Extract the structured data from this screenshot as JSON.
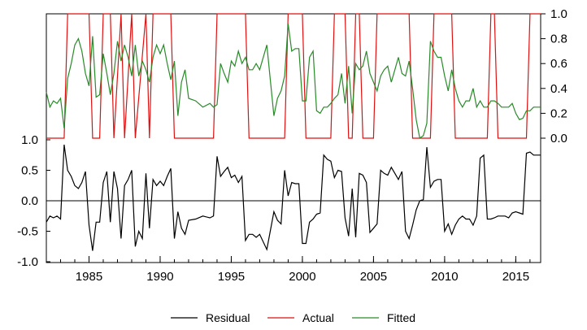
{
  "chart_data": {
    "type": "line",
    "title": "",
    "xlabel": "",
    "xlim": [
      1982.0,
      2016.75
    ],
    "x_ticks": [
      1985,
      1990,
      1995,
      2000,
      2005,
      2010,
      2015
    ],
    "x_tick_labels": [
      "1985",
      "1990",
      "1995",
      "2000",
      "2005",
      "2010",
      "2015"
    ],
    "left_axis": {
      "ylim": [
        -1.0,
        1.0
      ],
      "ticks": [
        1.0,
        0.5,
        0.0,
        -0.5,
        -1.0
      ],
      "tick_labels": [
        "1.0",
        "0.5",
        "0.0",
        "-0.5",
        "-1.0"
      ],
      "zero_line": true
    },
    "right_axis": {
      "ylim": [
        0.0,
        1.0
      ],
      "ticks": [
        1.0,
        0.8,
        0.6,
        0.4,
        0.2,
        0.0
      ],
      "tick_labels": [
        "1.0",
        "0.8",
        "0.6",
        "0.4",
        "0.2",
        "0.0"
      ]
    },
    "legend": {
      "placement": "bottom-center"
    },
    "series": [
      {
        "name": "Residual",
        "axis": "left",
        "color": "#000000",
        "x": [
          1982.0,
          1982.25,
          1982.5,
          1982.75,
          1983.0,
          1983.25,
          1983.5,
          1983.75,
          1984.0,
          1984.25,
          1984.5,
          1984.75,
          1985.0,
          1985.25,
          1985.5,
          1985.75,
          1986.0,
          1986.25,
          1986.5,
          1986.75,
          1987.0,
          1987.25,
          1987.5,
          1987.75,
          1988.0,
          1988.25,
          1988.5,
          1988.75,
          1989.0,
          1989.25,
          1989.5,
          1989.75,
          1990.0,
          1990.25,
          1990.5,
          1990.75,
          1991.0,
          1991.25,
          1991.5,
          1991.75,
          1992.0,
          1992.5,
          1993.0,
          1993.5,
          1993.75,
          1994.0,
          1994.25,
          1994.5,
          1994.75,
          1995.0,
          1995.25,
          1995.5,
          1995.75,
          1996.0,
          1996.25,
          1996.5,
          1996.75,
          1997.0,
          1997.5,
          1998.0,
          1998.25,
          1998.5,
          1998.75,
          1999.0,
          1999.25,
          1999.5,
          1999.75,
          2000.0,
          2000.25,
          2000.5,
          2000.75,
          2001.0,
          2001.25,
          2001.5,
          2001.75,
          2002.0,
          2002.25,
          2002.5,
          2002.75,
          2003.0,
          2003.25,
          2003.5,
          2003.75,
          2004.0,
          2004.25,
          2004.5,
          2004.75,
          2005.0,
          2005.25,
          2005.5,
          2005.75,
          2006.0,
          2006.25,
          2006.5,
          2006.75,
          2007.0,
          2007.25,
          2007.5,
          2007.75,
          2008.0,
          2008.25,
          2008.5,
          2008.75,
          2009.0,
          2009.25,
          2009.5,
          2009.75,
          2010.0,
          2010.25,
          2010.5,
          2010.75,
          2011.0,
          2011.25,
          2011.5,
          2011.75,
          2012.0,
          2012.25,
          2012.5,
          2012.75,
          2013.0,
          2013.25,
          2013.5,
          2013.75,
          2014.0,
          2014.25,
          2014.5,
          2014.75,
          2015.0,
          2015.25,
          2015.5,
          2015.75,
          2016.0,
          2016.25,
          2016.5,
          2016.75
        ],
        "values": [
          -0.35,
          -0.25,
          -0.28,
          -0.25,
          -0.3,
          0.92,
          0.5,
          0.4,
          0.25,
          0.2,
          0.3,
          0.48,
          -0.4,
          -0.82,
          -0.35,
          -0.35,
          0.3,
          0.48,
          -0.35,
          0.48,
          0.2,
          -0.62,
          0.25,
          0.35,
          0.5,
          -0.75,
          -0.5,
          -0.62,
          0.45,
          -0.45,
          0.35,
          0.25,
          0.32,
          0.25,
          0.4,
          0.53,
          -0.62,
          -0.18,
          -0.45,
          -0.55,
          -0.32,
          -0.3,
          -0.25,
          -0.28,
          -0.25,
          0.73,
          0.4,
          0.48,
          0.55,
          0.38,
          0.42,
          0.3,
          0.4,
          -0.65,
          -0.55,
          -0.55,
          -0.6,
          -0.55,
          -0.8,
          -0.18,
          -0.32,
          -0.38,
          0.5,
          0.08,
          0.3,
          0.28,
          0.28,
          -0.7,
          -0.7,
          -0.35,
          -0.3,
          -0.22,
          -0.2,
          0.75,
          0.68,
          0.65,
          0.38,
          0.5,
          0.48,
          -0.28,
          -0.58,
          0.2,
          -0.6,
          0.45,
          0.42,
          0.3,
          -0.52,
          -0.45,
          -0.38,
          0.5,
          0.45,
          0.42,
          0.55,
          0.45,
          0.35,
          0.48,
          -0.5,
          -0.62,
          -0.4,
          -0.15,
          0.0,
          0.02,
          0.88,
          0.22,
          0.32,
          0.35,
          0.35,
          -0.5,
          -0.38,
          -0.55,
          -0.4,
          -0.3,
          -0.25,
          -0.3,
          -0.3,
          -0.4,
          -0.25,
          0.7,
          0.75,
          -0.3,
          -0.3,
          -0.28,
          -0.25,
          -0.25,
          -0.25,
          -0.28,
          -0.2,
          -0.18,
          -0.2,
          -0.22,
          0.78,
          0.8,
          0.75,
          0.75,
          0.75
        ]
      },
      {
        "name": "Actual",
        "axis": "right",
        "color": "#dd1111",
        "x": [
          1982.0,
          1983.25,
          1983.5,
          1985.0,
          1985.25,
          1985.75,
          1986.0,
          1986.5,
          1986.75,
          1987.25,
          1987.5,
          1988.0,
          1988.25,
          1989.0,
          1989.25,
          1989.5,
          1989.75,
          1990.75,
          1991.0,
          1993.75,
          1994.0,
          1996.0,
          1996.25,
          1998.75,
          1999.0,
          2000.0,
          2000.25,
          2002.0,
          2002.25,
          2003.0,
          2003.25,
          2003.5,
          2003.75,
          2004.0,
          2004.25,
          2005.0,
          2005.25,
          2007.5,
          2007.75,
          2009.0,
          2009.25,
          2010.5,
          2010.75,
          2013.0,
          2013.25,
          2013.5,
          2013.75,
          2015.75,
          2016.0,
          2016.75
        ],
        "values": [
          0,
          0,
          1,
          1,
          0,
          0,
          1,
          1,
          0,
          1,
          0,
          1,
          0,
          1,
          0,
          1,
          1,
          1,
          0,
          0,
          1,
          1,
          0,
          0,
          1,
          1,
          0,
          0,
          1,
          1,
          0,
          0,
          1,
          1,
          0,
          0,
          1,
          1,
          0,
          0,
          1,
          1,
          0,
          0,
          1,
          1,
          0,
          0,
          1,
          1
        ]
      },
      {
        "name": "Fitted",
        "axis": "right",
        "color": "#2a8a2a",
        "x": [
          1982.0,
          1982.25,
          1982.5,
          1982.75,
          1983.0,
          1983.25,
          1983.5,
          1983.75,
          1984.0,
          1984.25,
          1984.5,
          1984.75,
          1985.0,
          1985.25,
          1985.5,
          1985.75,
          1986.0,
          1986.25,
          1986.5,
          1986.75,
          1987.0,
          1987.25,
          1987.5,
          1987.75,
          1988.0,
          1988.25,
          1988.5,
          1988.75,
          1989.0,
          1989.25,
          1989.5,
          1989.75,
          1990.0,
          1990.25,
          1990.5,
          1990.75,
          1991.0,
          1991.25,
          1991.5,
          1991.75,
          1992.0,
          1992.5,
          1993.0,
          1993.5,
          1993.75,
          1994.0,
          1994.25,
          1994.5,
          1994.75,
          1995.0,
          1995.25,
          1995.5,
          1995.75,
          1996.0,
          1996.25,
          1996.5,
          1996.75,
          1997.0,
          1997.5,
          1998.0,
          1998.25,
          1998.5,
          1998.75,
          1999.0,
          1999.25,
          1999.5,
          1999.75,
          2000.0,
          2000.25,
          2000.5,
          2000.75,
          2001.0,
          2001.25,
          2001.5,
          2001.75,
          2002.0,
          2002.25,
          2002.5,
          2002.75,
          2003.0,
          2003.25,
          2003.5,
          2003.75,
          2004.0,
          2004.25,
          2004.5,
          2004.75,
          2005.0,
          2005.25,
          2005.5,
          2005.75,
          2006.0,
          2006.25,
          2006.5,
          2006.75,
          2007.0,
          2007.25,
          2007.5,
          2007.75,
          2008.0,
          2008.25,
          2008.5,
          2008.75,
          2009.0,
          2009.25,
          2009.5,
          2009.75,
          2010.0,
          2010.25,
          2010.5,
          2010.75,
          2011.0,
          2011.25,
          2011.5,
          2011.75,
          2012.0,
          2012.25,
          2012.5,
          2012.75,
          2013.0,
          2013.25,
          2013.5,
          2013.75,
          2014.0,
          2014.25,
          2014.5,
          2014.75,
          2015.0,
          2015.25,
          2015.5,
          2015.75,
          2016.0,
          2016.25,
          2016.5,
          2016.75
        ],
        "values": [
          0.37,
          0.25,
          0.3,
          0.28,
          0.32,
          0.08,
          0.48,
          0.6,
          0.75,
          0.8,
          0.7,
          0.52,
          0.42,
          0.82,
          0.33,
          0.35,
          0.68,
          0.52,
          0.35,
          0.52,
          0.78,
          0.62,
          0.75,
          0.65,
          0.5,
          0.75,
          0.5,
          0.62,
          0.55,
          0.45,
          0.65,
          0.75,
          0.68,
          0.75,
          0.6,
          0.47,
          0.62,
          0.18,
          0.45,
          0.55,
          0.32,
          0.3,
          0.25,
          0.28,
          0.25,
          0.27,
          0.6,
          0.52,
          0.45,
          0.62,
          0.58,
          0.7,
          0.6,
          0.65,
          0.55,
          0.55,
          0.6,
          0.55,
          0.75,
          0.18,
          0.32,
          0.38,
          0.5,
          0.92,
          0.7,
          0.72,
          0.72,
          0.3,
          0.3,
          0.65,
          0.7,
          0.22,
          0.2,
          0.25,
          0.25,
          0.28,
          0.32,
          0.35,
          0.52,
          0.28,
          0.58,
          0.2,
          0.6,
          0.55,
          0.58,
          0.7,
          0.52,
          0.45,
          0.38,
          0.5,
          0.55,
          0.58,
          0.45,
          0.55,
          0.65,
          0.52,
          0.5,
          0.62,
          0.4,
          0.15,
          0.0,
          0.02,
          0.12,
          0.78,
          0.7,
          0.65,
          0.65,
          0.5,
          0.38,
          0.55,
          0.4,
          0.3,
          0.25,
          0.3,
          0.3,
          0.4,
          0.25,
          0.3,
          0.25,
          0.25,
          0.3,
          0.3,
          0.28,
          0.25,
          0.25,
          0.25,
          0.28,
          0.2,
          0.15,
          0.16,
          0.22,
          0.22,
          0.25,
          0.25,
          0.25
        ]
      }
    ]
  }
}
